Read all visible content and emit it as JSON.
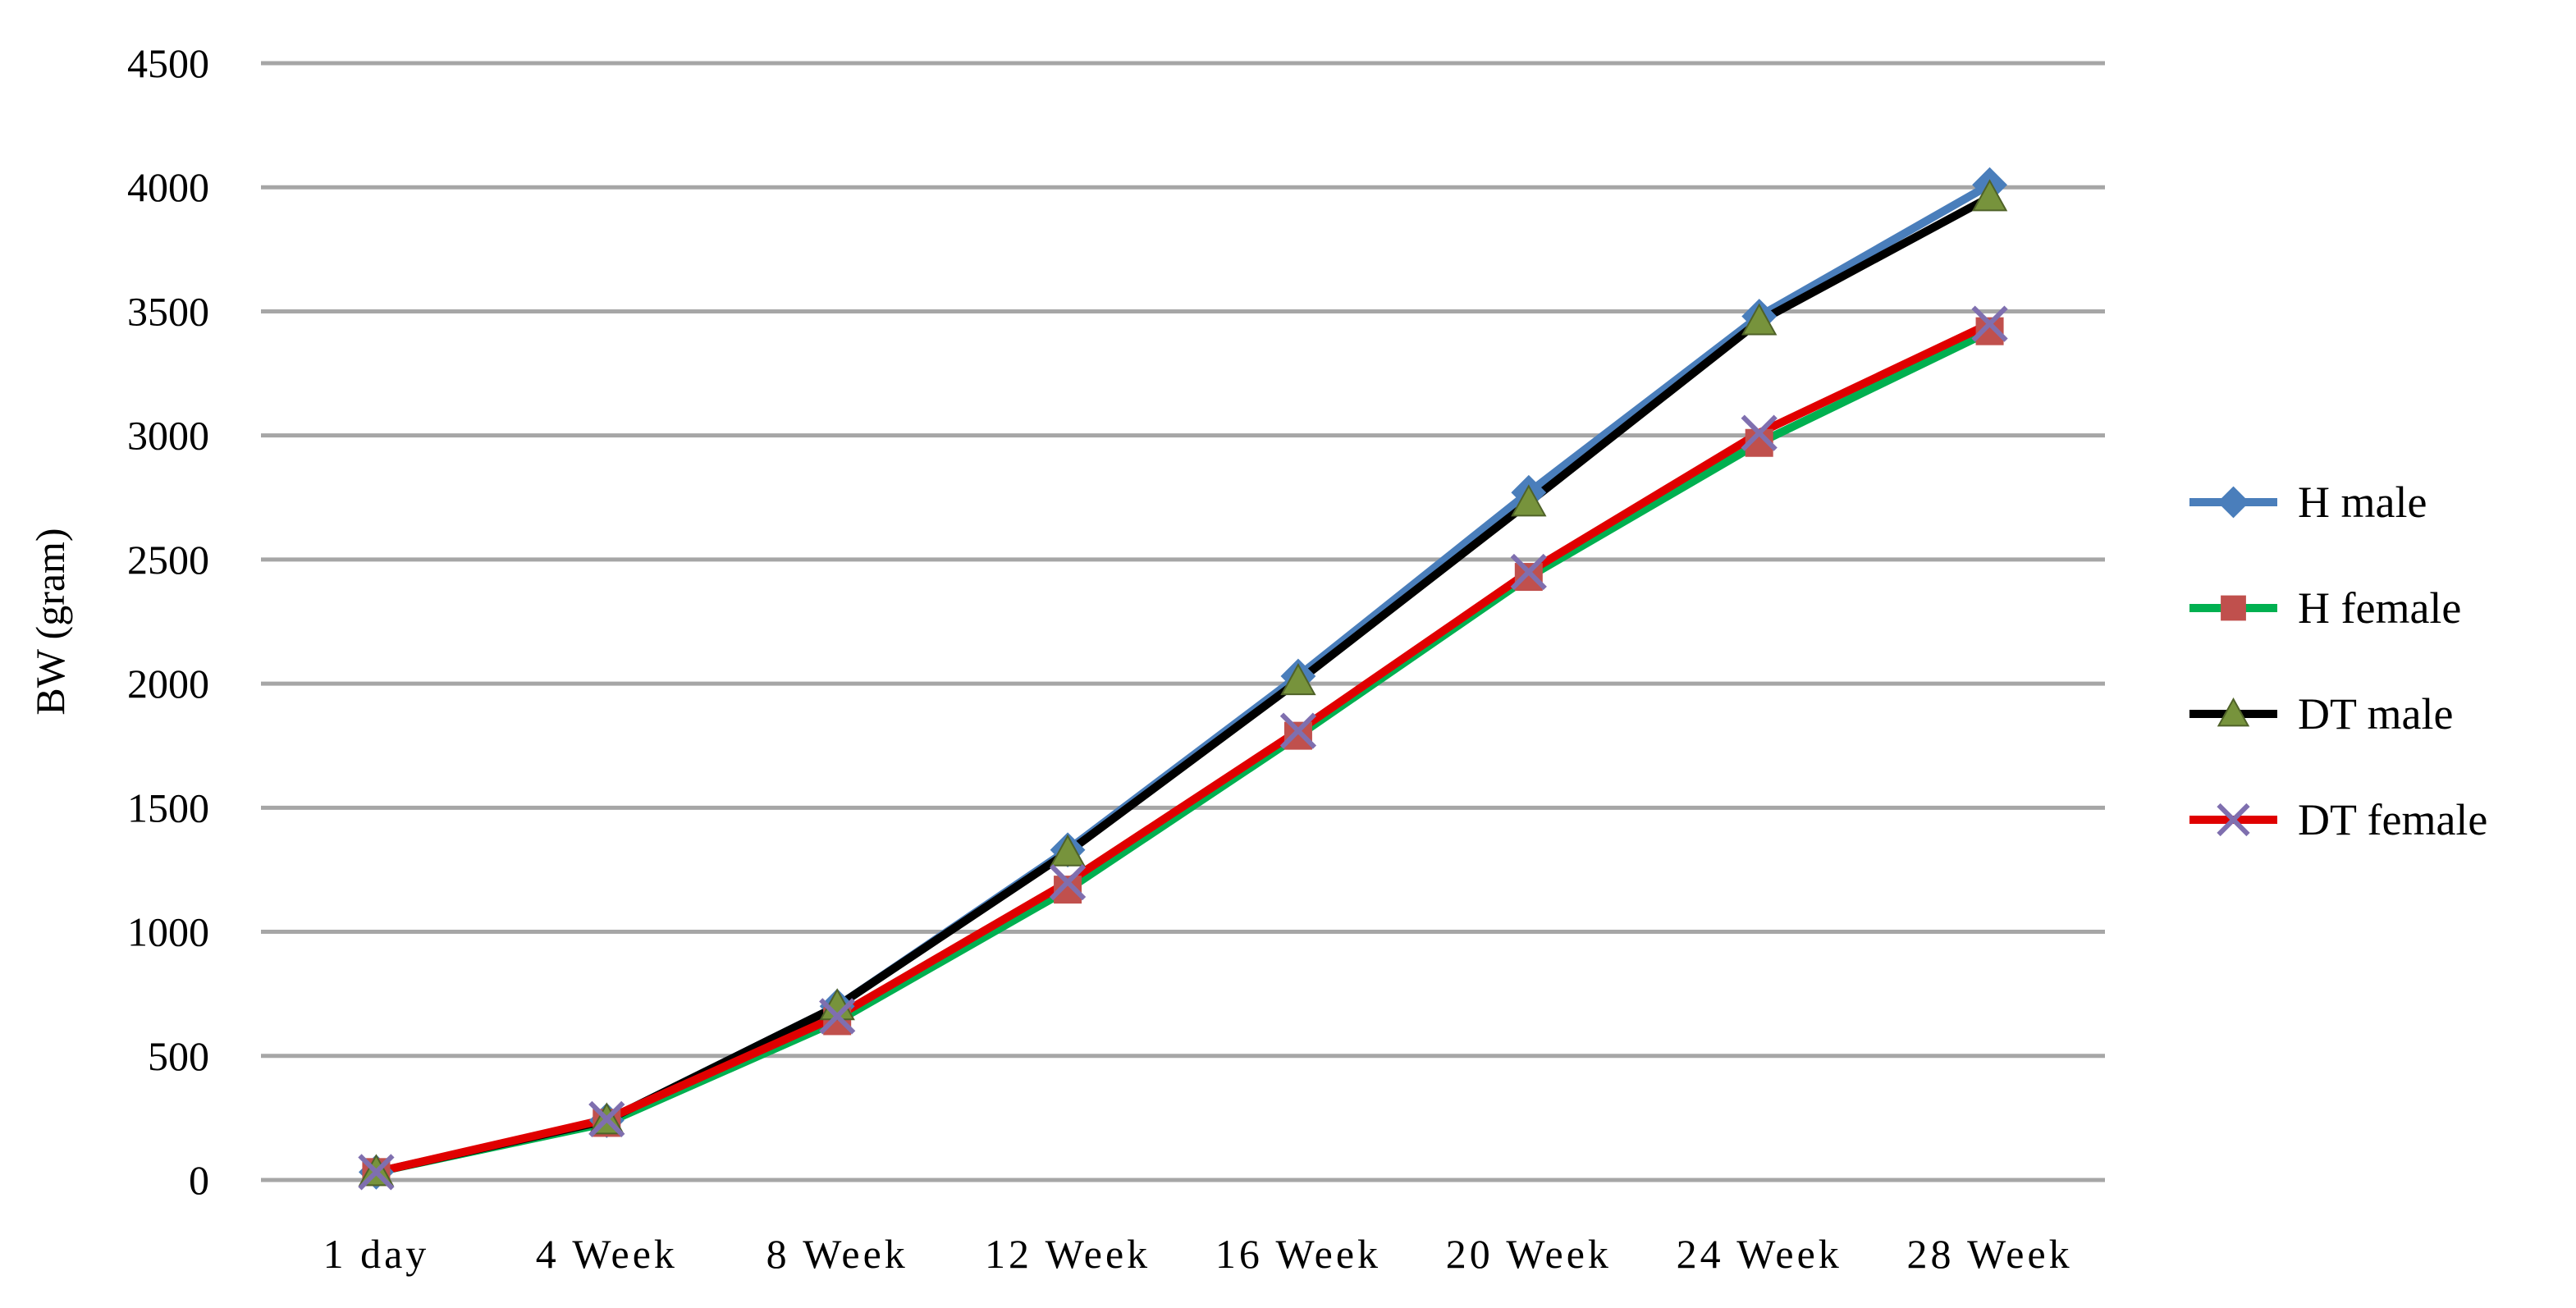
{
  "chart_data": {
    "type": "line",
    "title": "",
    "xlabel": "",
    "ylabel": "BW (gram)",
    "ylim": [
      0,
      4500
    ],
    "yticks": [
      0,
      500,
      1000,
      1500,
      2000,
      2500,
      3000,
      3500,
      4000,
      4500
    ],
    "grid": true,
    "legend_position": "right",
    "categories": [
      "1 day",
      "4 Week",
      "8 Week",
      "12 Week",
      "16 Week",
      "20 Week",
      "24 Week",
      "28 Week"
    ],
    "series": [
      {
        "name": "H male",
        "color": "#4A7EBB",
        "marker": "diamond",
        "values": [
          32,
          240,
          700,
          1330,
          2030,
          2770,
          3480,
          4010
        ]
      },
      {
        "name": "H female",
        "color": "#00B050",
        "marker": "square",
        "markerColor": "#C0504D",
        "values": [
          32,
          230,
          640,
          1170,
          1790,
          2430,
          2970,
          3420
        ]
      },
      {
        "name": "DT male",
        "color": "#000000",
        "marker": "triangle",
        "markerColor": "#77933C",
        "values": [
          32,
          240,
          700,
          1320,
          2010,
          2730,
          3460,
          3960
        ]
      },
      {
        "name": "DT female",
        "color": "#E00000",
        "marker": "x",
        "markerColor": "#7F6FAF",
        "values": [
          32,
          245,
          660,
          1200,
          1810,
          2450,
          3010,
          3450
        ]
      }
    ]
  }
}
